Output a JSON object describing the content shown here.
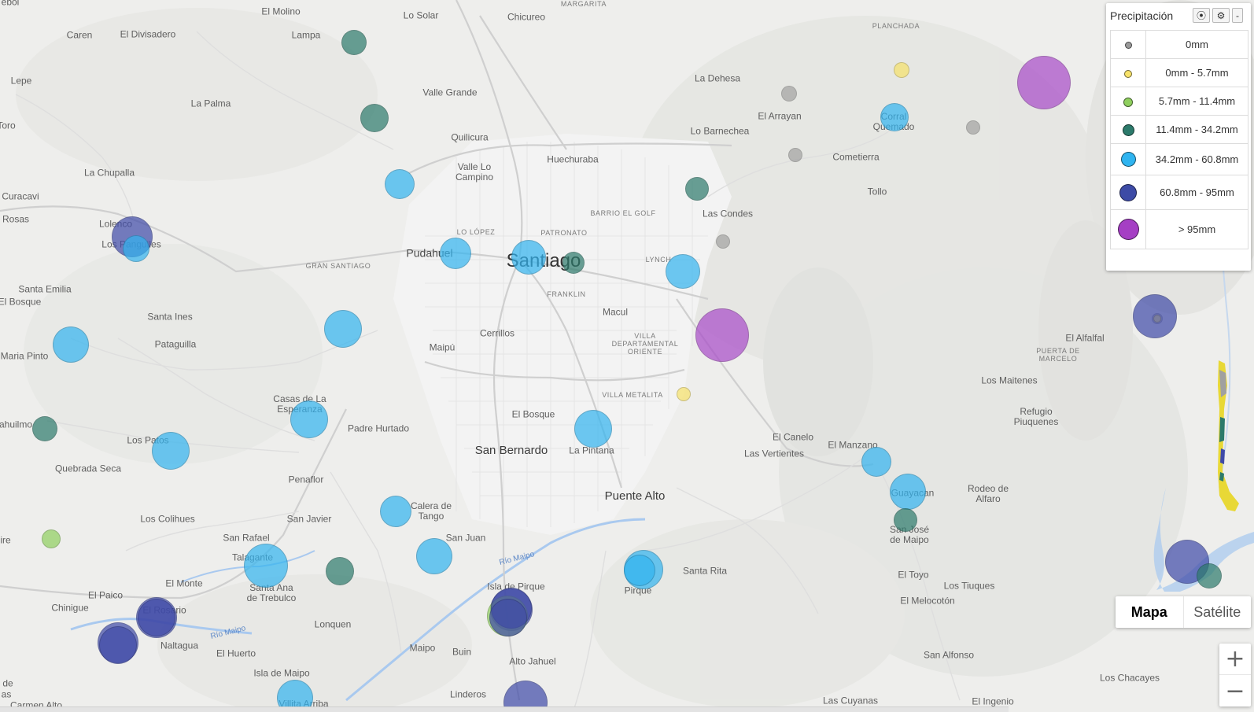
{
  "legend": {
    "title": "Precipitación",
    "buttons": [
      {
        "name": "target-icon",
        "glyph": "⦿"
      },
      {
        "name": "gear-icon",
        "glyph": "⚙"
      },
      {
        "name": "collapse-icon",
        "glyph": "-"
      }
    ],
    "rows": [
      {
        "label": "0mm",
        "color": "#9a9a9a",
        "cls": "gray"
      },
      {
        "label": "0mm - 5.7mm",
        "color": "#f7e26a",
        "cls": "yellow"
      },
      {
        "label": "5.7mm - 11.4mm",
        "color": "#8fcf5e",
        "cls": "lightgreen"
      },
      {
        "label": "11.4mm - 34.2mm",
        "color": "#2c7a6b",
        "cls": "teal"
      },
      {
        "label": "34.2mm - 60.8mm",
        "color": "#2fb4f0",
        "cls": "blue"
      },
      {
        "label": "60.8mm - 95mm",
        "color": "#3d4ba6",
        "cls": "navy"
      },
      {
        "label": "> 95mm",
        "color": "#a53fc4",
        "cls": "purple"
      }
    ]
  },
  "map_type": {
    "map": "Mapa",
    "satellite": "Satélite"
  },
  "zoom": {
    "in": "+",
    "out": "−"
  },
  "colors": {
    "gray": "#8f8f8f",
    "yellow": "#f7e26a",
    "lightgreen": "#8fcf5e",
    "teal": "#2c7a6b",
    "blue": "#32b4f0",
    "navy": "#3f4aa8",
    "purple": "#a84ac8"
  },
  "places": [
    {
      "id": "el-molino",
      "t": "El Molino",
      "s": "sm"
    },
    {
      "id": "lo-solar",
      "t": "Lo Solar",
      "s": "sm"
    },
    {
      "id": "chicureo",
      "t": "Chicureo",
      "s": "sm"
    },
    {
      "id": "margarita",
      "t": "MARGARITA",
      "s": "dist"
    },
    {
      "id": "caren",
      "t": "Caren",
      "s": "sm"
    },
    {
      "id": "el-divisadero",
      "t": "El Divisadero",
      "s": "sm"
    },
    {
      "id": "lampa",
      "t": "Lampa",
      "s": "sm"
    },
    {
      "id": "lepe",
      "t": "Lepe",
      "s": "sm"
    },
    {
      "id": "la-palma",
      "t": "La Palma",
      "s": "sm"
    },
    {
      "id": "valle-grande",
      "t": "Valle Grande",
      "s": "sm"
    },
    {
      "id": "la-dehesa",
      "t": "La Dehesa",
      "s": "sm"
    },
    {
      "id": "el-arrayan",
      "t": "El Arrayan",
      "s": "sm"
    },
    {
      "id": "planchada",
      "t": "PLANCHADA",
      "s": "dist"
    },
    {
      "id": "toro",
      "t": "Toro",
      "s": "sm"
    },
    {
      "id": "quilicura",
      "t": "Quilicura",
      "s": "sm"
    },
    {
      "id": "lo-barnechea",
      "t": "Lo Barnechea",
      "s": "sm"
    },
    {
      "id": "corral-quemado",
      "t": "Corral\nQuemado",
      "s": "wrap"
    },
    {
      "id": "huechuraba",
      "t": "Huechuraba",
      "s": "sm"
    },
    {
      "id": "cometierra",
      "t": "Cometierra",
      "s": "sm"
    },
    {
      "id": "valle-lo-campino",
      "t": "Valle Lo\nCampino",
      "s": "wrap"
    },
    {
      "id": "la-chupalla",
      "t": "La Chupalla",
      "s": "sm"
    },
    {
      "id": "curacavi",
      "t": "Curacavi",
      "s": "sm"
    },
    {
      "id": "tollo",
      "t": "Tollo",
      "s": "sm"
    },
    {
      "id": "barrio-el-golf",
      "t": "BARRIO EL GOLF",
      "s": "dist"
    },
    {
      "id": "las-condes",
      "t": "Las Condes",
      "s": "sm"
    },
    {
      "id": "rosas",
      "t": "Rosas",
      "s": "sm"
    },
    {
      "id": "lolenco",
      "t": "Lolenco",
      "s": "sm"
    },
    {
      "id": "lo-lopez",
      "t": "LO LÓPEZ",
      "s": "dist"
    },
    {
      "id": "patronato",
      "t": "PATRONATO",
      "s": "dist"
    },
    {
      "id": "los-panguiles",
      "t": "Los Panguiles",
      "s": "sm"
    },
    {
      "id": "pudahuel",
      "t": "Pudahuel",
      "s": "md"
    },
    {
      "id": "santiago",
      "t": "Santiago",
      "s": "xl"
    },
    {
      "id": "lynch",
      "t": "LYNCH",
      "s": "dist"
    },
    {
      "id": "gran-santiago",
      "t": "GRAN SANTIAGO",
      "s": "dist"
    },
    {
      "id": "santa-emilia",
      "t": "Santa Emilia",
      "s": "sm"
    },
    {
      "id": "franklin",
      "t": "FRANKLIN",
      "s": "dist"
    },
    {
      "id": "el-bosque-w",
      "t": "El Bosque",
      "s": "sm"
    },
    {
      "id": "macul",
      "t": "Macul",
      "s": "sm"
    },
    {
      "id": "santa-ines",
      "t": "Santa Ines",
      "s": "sm"
    },
    {
      "id": "cerrillos",
      "t": "Cerrillos",
      "s": "sm"
    },
    {
      "id": "villa-dep-oriente",
      "t": "VILLA\nDEPARTAMENTAL\nORIENTE",
      "s": "distwrap"
    },
    {
      "id": "el-alfalfal",
      "t": "El Alfalfal",
      "s": "sm"
    },
    {
      "id": "pataguilla",
      "t": "Pataguilla",
      "s": "sm"
    },
    {
      "id": "maipu",
      "t": "Maipú",
      "s": "sm"
    },
    {
      "id": "puerta-de-marcelo",
      "t": "PUERTA DE\nMARCELO",
      "s": "distwrap"
    },
    {
      "id": "maria-pinto",
      "t": "Maria Pinto",
      "s": "sm"
    },
    {
      "id": "los-maitenes",
      "t": "Los Maitenes",
      "s": "sm"
    },
    {
      "id": "villa-metalita",
      "t": "VILLA METALITA",
      "s": "dist"
    },
    {
      "id": "casas-de-la-esperanza",
      "t": "Casas de La\nEsperanza",
      "s": "wrap"
    },
    {
      "id": "refugio-piuquenes",
      "t": "Refugio\nPiuquenes",
      "s": "wrap"
    },
    {
      "id": "el-bosque",
      "t": "El Bosque",
      "s": "sm"
    },
    {
      "id": "ahuilmo",
      "t": "ahuilmo",
      "s": "sm"
    },
    {
      "id": "padre-hurtado",
      "t": "Padre Hurtado",
      "s": "sm"
    },
    {
      "id": "el-canelo",
      "t": "El Canelo",
      "s": "sm"
    },
    {
      "id": "los-patos",
      "t": "Los Patos",
      "s": "sm"
    },
    {
      "id": "san-bernardo",
      "t": "San Bernardo",
      "s": "lg"
    },
    {
      "id": "la-pintana",
      "t": "La Pintana",
      "s": "sm"
    },
    {
      "id": "el-manzano",
      "t": "El Manzano",
      "s": "sm"
    },
    {
      "id": "las-vertientes",
      "t": "Las Vertientes",
      "s": "sm"
    },
    {
      "id": "quebrada-seca",
      "t": "Quebrada Seca",
      "s": "sm"
    },
    {
      "id": "penaflor",
      "t": "Penaflor",
      "s": "sm"
    },
    {
      "id": "guayacan",
      "t": "Guayacan",
      "s": "sm"
    },
    {
      "id": "rodeo-de-alfaro",
      "t": "Rodeo de\nAlfaro",
      "s": "wrap"
    },
    {
      "id": "puente-alto",
      "t": "Puente Alto",
      "s": "lg"
    },
    {
      "id": "calera-de-tango",
      "t": "Calera de\nTango",
      "s": "wrap"
    },
    {
      "id": "los-colihues",
      "t": "Los Colihues",
      "s": "sm"
    },
    {
      "id": "san-javier",
      "t": "San Javier",
      "s": "sm"
    },
    {
      "id": "san-jose-de-maipo",
      "t": "San José\nde Maipo",
      "s": "wrap"
    },
    {
      "id": "ire",
      "t": "ire",
      "s": "sm"
    },
    {
      "id": "san-rafael",
      "t": "San Rafael",
      "s": "sm"
    },
    {
      "id": "san-juan",
      "t": "San Juan",
      "s": "sm"
    },
    {
      "id": "talagante",
      "t": "Talagante",
      "s": "sm"
    },
    {
      "id": "rio-maipo-1",
      "t": "Río Maipo",
      "s": "river"
    },
    {
      "id": "santa-rita",
      "t": "Santa Rita",
      "s": "sm"
    },
    {
      "id": "el-toyo",
      "t": "El Toyo",
      "s": "sm"
    },
    {
      "id": "el-monte",
      "t": "El Monte",
      "s": "sm"
    },
    {
      "id": "santa-ana-de-trebulco",
      "t": "Santa Ana\nde Trebulco",
      "s": "wrap"
    },
    {
      "id": "isla-de-pirque",
      "t": "Isla de Pirque",
      "s": "sm"
    },
    {
      "id": "pirque",
      "t": "Pirque",
      "s": "sm"
    },
    {
      "id": "los-tiuques",
      "t": "Los Tiuques",
      "s": "sm"
    },
    {
      "id": "el-paico",
      "t": "El Paico",
      "s": "sm"
    },
    {
      "id": "el-melocoton",
      "t": "El Melocotón",
      "s": "sm"
    },
    {
      "id": "chinigue",
      "t": "Chinigue",
      "s": "sm"
    },
    {
      "id": "el-rosario",
      "t": "El Rosario",
      "s": "sm"
    },
    {
      "id": "lonquen",
      "t": "Lonquen",
      "s": "sm"
    },
    {
      "id": "rio-maipo-2",
      "t": "Río Maipo",
      "s": "river"
    },
    {
      "id": "naltagua",
      "t": "Naltagua",
      "s": "sm"
    },
    {
      "id": "el-huerto",
      "t": "El Huerto",
      "s": "sm"
    },
    {
      "id": "maipo",
      "t": "Maipo",
      "s": "sm"
    },
    {
      "id": "buin",
      "t": "Buin",
      "s": "sm"
    },
    {
      "id": "alto-jahuel",
      "t": "Alto Jahuel",
      "s": "sm"
    },
    {
      "id": "san-alfonso",
      "t": "San Alfonso",
      "s": "sm"
    },
    {
      "id": "isla-de-maipo",
      "t": "Isla de Maipo",
      "s": "sm"
    },
    {
      "id": "los-chacayes",
      "t": "Los Chacayes",
      "s": "sm"
    },
    {
      "id": "de",
      "t": "de",
      "s": "sm"
    },
    {
      "id": "linderos",
      "t": "Linderos",
      "s": "sm"
    },
    {
      "id": "as",
      "t": "as",
      "s": "sm"
    },
    {
      "id": "las-cuyanas",
      "t": "Las Cuyanas",
      "s": "sm"
    },
    {
      "id": "el-ingenio",
      "t": "El Ingenio",
      "s": "sm"
    },
    {
      "id": "carmen-alto",
      "t": "Carmen Alto",
      "s": "sm"
    },
    {
      "id": "villita-arriba",
      "t": "Villita Arriba",
      "s": "sm"
    },
    {
      "id": "ebol",
      "t": "ebol",
      "s": "sm"
    }
  ],
  "stations": [
    {
      "c": "teal"
    },
    {
      "c": "teal"
    },
    {
      "c": "blue"
    },
    {
      "c": "navy"
    },
    {
      "c": "blue"
    },
    {
      "c": "blue"
    },
    {
      "c": "blue"
    },
    {
      "c": "teal"
    },
    {
      "c": "blue"
    },
    {
      "c": "blue"
    },
    {
      "c": "blue"
    },
    {
      "c": "teal"
    },
    {
      "c": "blue"
    },
    {
      "c": "blue"
    },
    {
      "c": "lightgreen"
    },
    {
      "c": "blue"
    },
    {
      "c": "teal"
    },
    {
      "c": "navy"
    },
    {
      "c": "navy"
    },
    {
      "c": "blue"
    },
    {
      "c": "navy"
    },
    {
      "c": "lightgreen"
    },
    {
      "c": "blue"
    },
    {
      "c": "navy"
    },
    {
      "c": "gray"
    },
    {
      "c": "gray"
    },
    {
      "c": "gray"
    },
    {
      "c": "yellow"
    },
    {
      "c": "blue"
    },
    {
      "c": "gray"
    },
    {
      "c": "purple"
    },
    {
      "c": "teal"
    },
    {
      "c": "gray"
    },
    {
      "c": "blue"
    },
    {
      "c": "purple"
    },
    {
      "c": "yellow"
    },
    {
      "c": "blue"
    },
    {
      "c": "blue"
    },
    {
      "c": "blue"
    },
    {
      "c": "blue"
    },
    {
      "c": "blue"
    },
    {
      "c": "teal"
    },
    {
      "c": "navy"
    },
    {
      "c": "navy"
    },
    {
      "c": "navy"
    },
    {
      "c": "navy"
    },
    {
      "c": "teal"
    },
    {
      "c": "navy"
    },
    {
      "c": "navy"
    },
    {
      "c": "gray"
    }
  ]
}
